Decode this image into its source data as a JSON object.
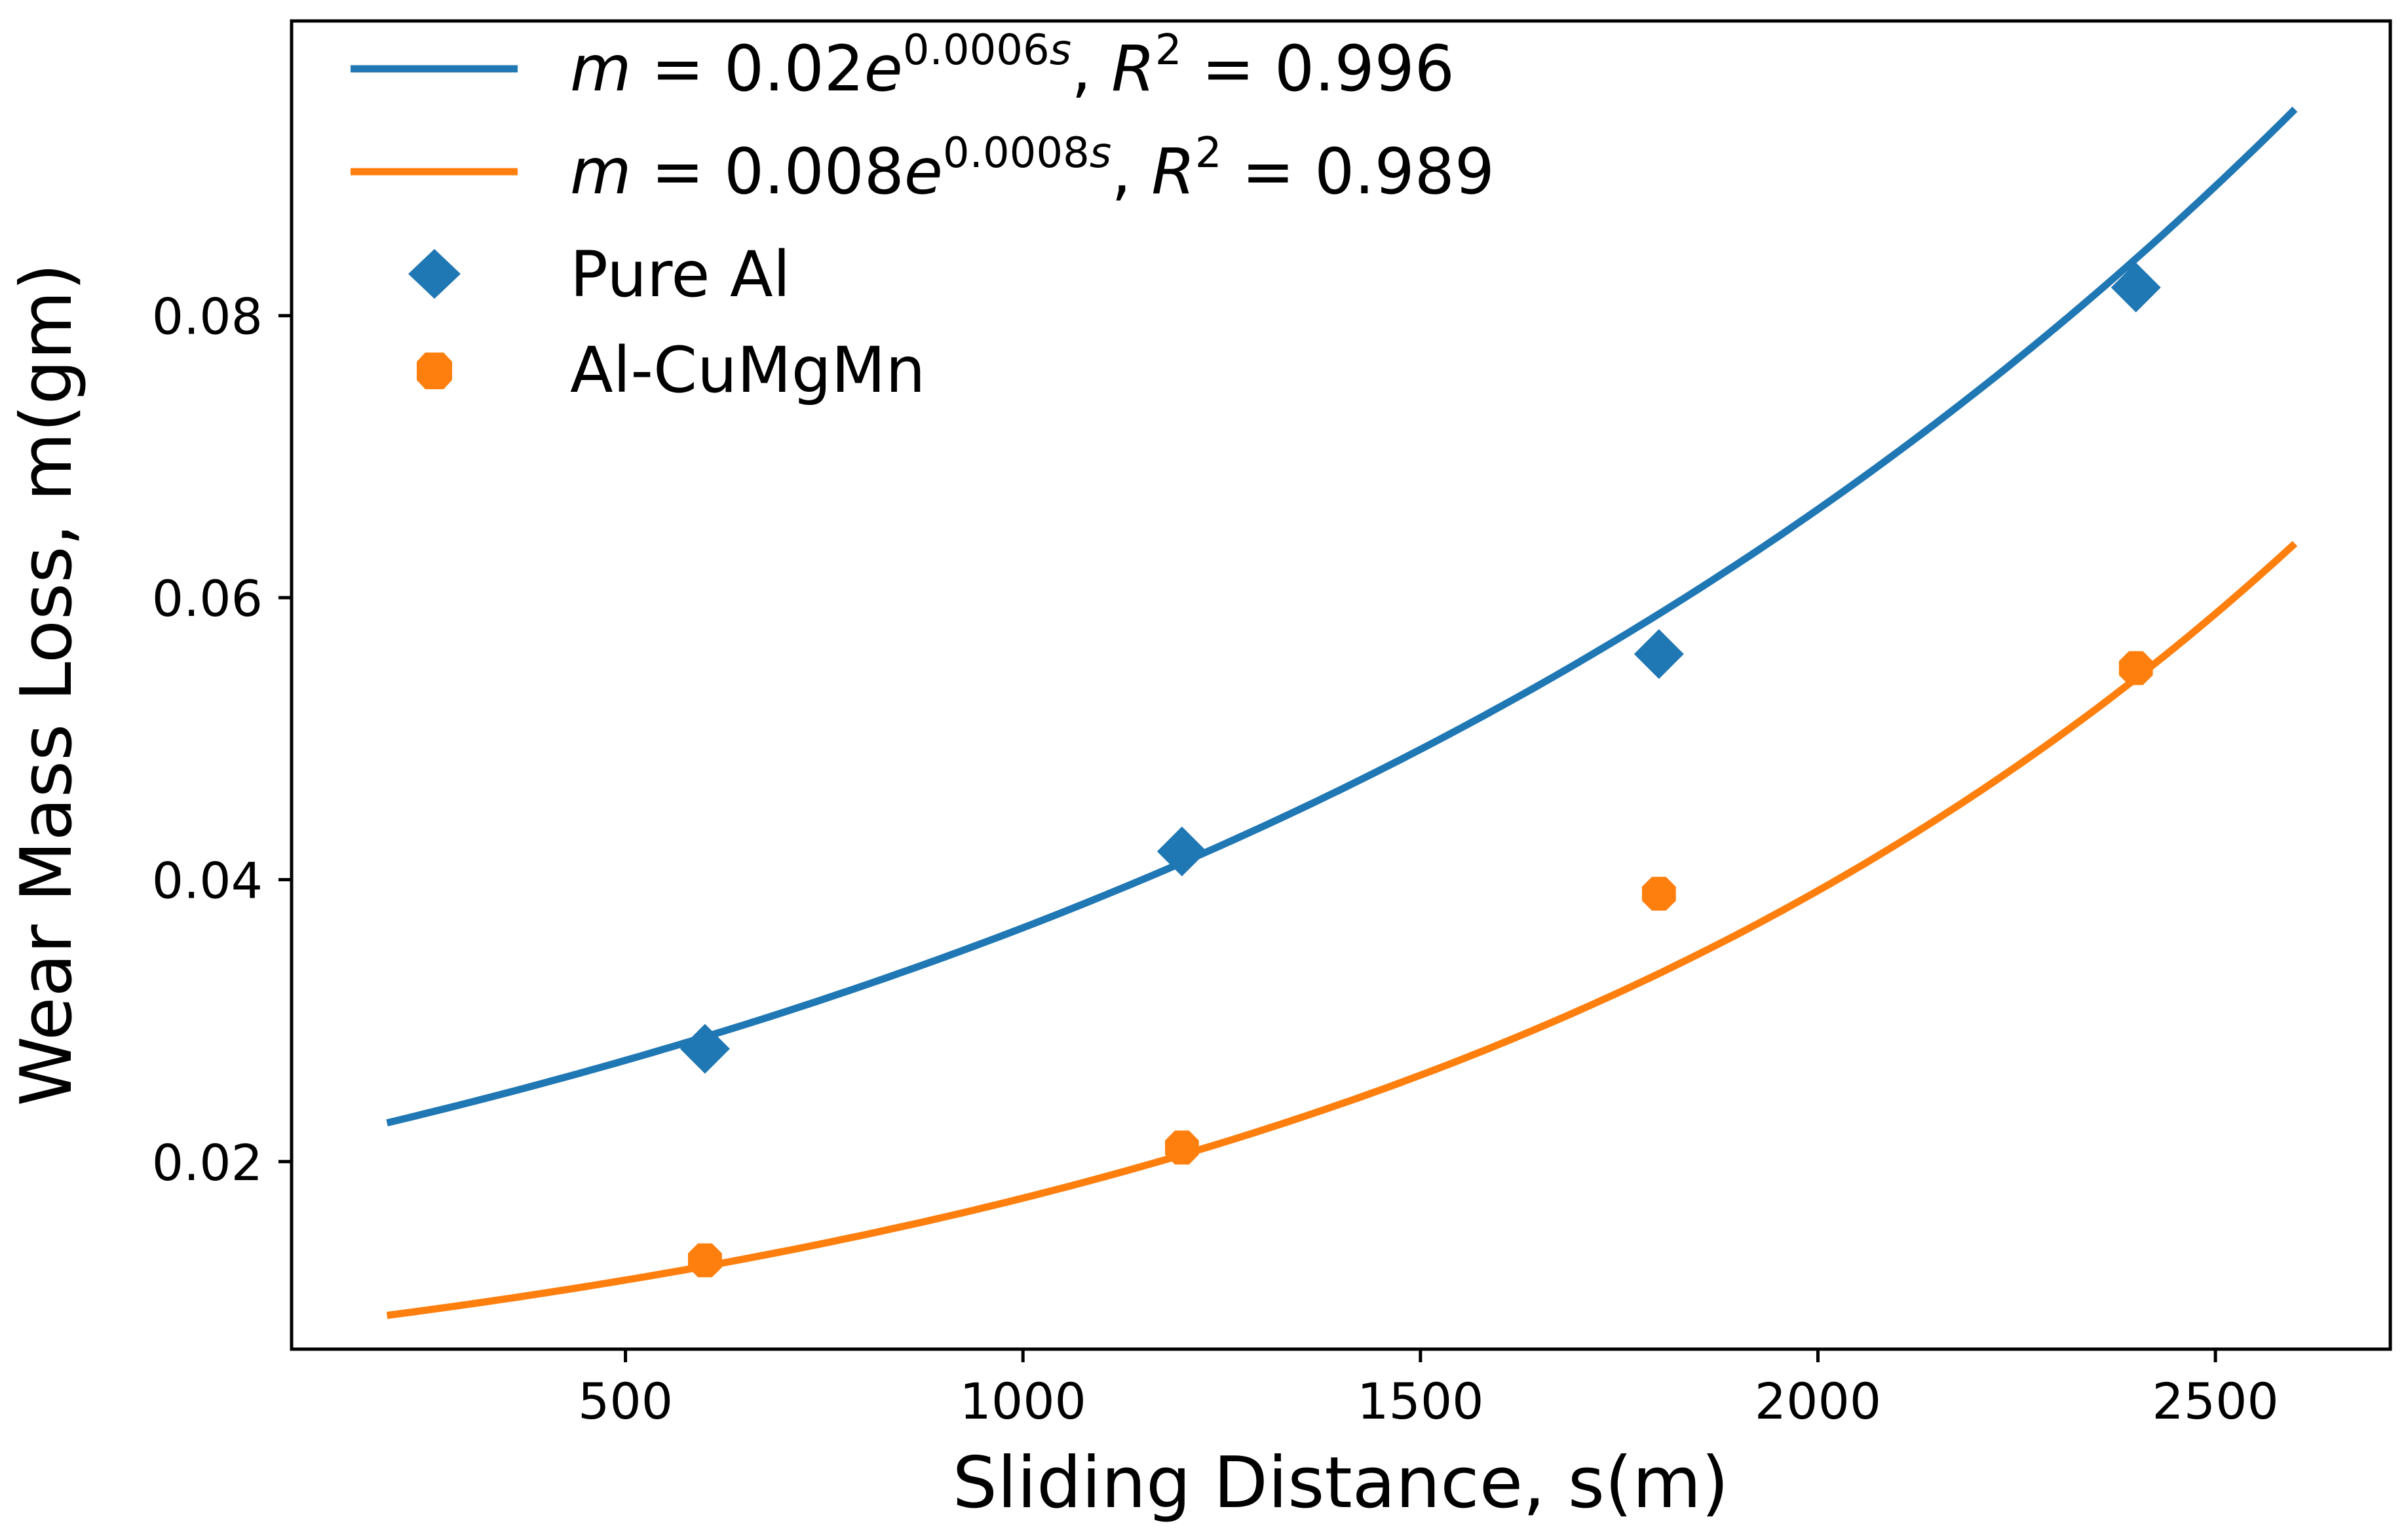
{
  "chart_data": {
    "type": "scatter",
    "title": "",
    "xlabel": "Sliding Distance, s(m)",
    "ylabel": "Wear Mass Loss, m(gm)",
    "xlim": [
      80,
      2720
    ],
    "ylim": [
      0.0067,
      0.1009
    ],
    "xticks": [
      500,
      1000,
      1500,
      2000,
      2500
    ],
    "xtick_labels": [
      "500",
      "1000",
      "1500",
      "2000",
      "2500"
    ],
    "yticks": [
      0.02,
      0.04,
      0.06,
      0.08
    ],
    "ytick_labels": [
      "0.02",
      "0.04",
      "0.06",
      "0.08"
    ],
    "grid": false,
    "legend_position": "top-left",
    "series": [
      {
        "name": "Pure Al",
        "kind": "scatter",
        "marker": "diamond",
        "color": "#1f77b4",
        "x": [
          600,
          1200,
          1800,
          2400
        ],
        "y": [
          0.028,
          0.042,
          0.056,
          0.082
        ]
      },
      {
        "name": "Al-CuMgMn",
        "kind": "scatter",
        "marker": "octagon",
        "color": "#ff7f0e",
        "x": [
          600,
          1200,
          1800,
          2400
        ],
        "y": [
          0.013,
          0.021,
          0.039,
          0.055
        ]
      }
    ],
    "fits": [
      {
        "name": "Pure Al fit",
        "kind": "line",
        "color": "#1f77b4",
        "a": 0.0202,
        "b": 0.000594,
        "x_range": [
          200,
          2600
        ],
        "equation_lhs": "m",
        "equation_eq": " = 0.02",
        "equation_base": "e",
        "equation_exp": "0.0006",
        "equation_exp_var": "s",
        "r2_label": "R",
        "r2_sup": "2",
        "r2_value": " = 0.996"
      },
      {
        "name": "Al-CuMgMn fit",
        "kind": "line",
        "color": "#ff7f0e",
        "a": 0.00773,
        "b": 0.000812,
        "x_range": [
          200,
          2600
        ],
        "equation_lhs": "m",
        "equation_eq": " = 0.008",
        "equation_base": "e",
        "equation_exp": "0.0008",
        "equation_exp_var": "s",
        "r2_label": "R",
        "r2_sup": "2",
        "r2_value": " = 0.989"
      }
    ]
  }
}
